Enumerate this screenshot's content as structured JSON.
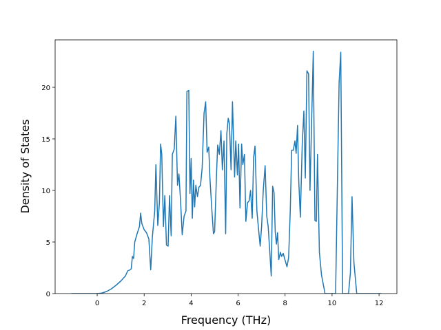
{
  "chart_data": {
    "type": "line",
    "xlabel": "Frequency (THz)",
    "ylabel": "Density of States",
    "color": "#1f77b4",
    "xlim": [
      -1.79,
      12.76
    ],
    "ylim": [
      0,
      24.6
    ],
    "xticks": [
      0,
      2,
      4,
      6,
      8,
      10,
      12
    ],
    "yticks": [
      0,
      5,
      10,
      15,
      20
    ],
    "x": [
      -1.1,
      0,
      0.2,
      0.4,
      0.6,
      0.8,
      1.0,
      1.2,
      1.3,
      1.4,
      1.45,
      1.5,
      1.55,
      1.6,
      1.7,
      1.8,
      1.85,
      1.9,
      2.0,
      2.1,
      2.2,
      2.28,
      2.35,
      2.45,
      2.5,
      2.58,
      2.65,
      2.7,
      2.75,
      2.82,
      2.88,
      2.95,
      3.02,
      3.08,
      3.15,
      3.2,
      3.28,
      3.35,
      3.42,
      3.48,
      3.55,
      3.62,
      3.7,
      3.78,
      3.82,
      3.9,
      3.95,
      4.0,
      4.05,
      4.1,
      4.15,
      4.2,
      4.27,
      4.33,
      4.4,
      4.47,
      4.55,
      4.62,
      4.68,
      4.75,
      4.8,
      4.88,
      4.95,
      5.0,
      5.08,
      5.13,
      5.2,
      5.27,
      5.33,
      5.4,
      5.47,
      5.52,
      5.58,
      5.63,
      5.7,
      5.76,
      5.85,
      5.9,
      5.97,
      6.02,
      6.08,
      6.15,
      6.2,
      6.27,
      6.33,
      6.4,
      6.47,
      6.53,
      6.6,
      6.66,
      6.72,
      6.8,
      6.88,
      6.94,
      7.0,
      7.07,
      7.15,
      7.22,
      7.28,
      7.35,
      7.41,
      7.47,
      7.53,
      7.58,
      7.63,
      7.68,
      7.73,
      7.8,
      7.85,
      7.92,
      7.98,
      8.08,
      8.15,
      8.22,
      8.28,
      8.35,
      8.42,
      8.47,
      8.53,
      8.58,
      8.65,
      8.73,
      8.8,
      8.86,
      8.93,
      9.0,
      9.06,
      9.2,
      9.27,
      9.33,
      9.38,
      9.46,
      9.55,
      9.7,
      10.15,
      10.3,
      10.37,
      10.45,
      10.7,
      10.78,
      10.85,
      10.93,
      11.05,
      12.1
    ],
    "values": [
      0,
      0,
      0.05,
      0.2,
      0.45,
      0.8,
      1.2,
      1.7,
      2.2,
      2.3,
      2.4,
      3.6,
      3.4,
      5.0,
      5.8,
      6.5,
      7.8,
      6.8,
      6.2,
      5.9,
      5.3,
      2.3,
      5.5,
      8.0,
      12.5,
      6.6,
      8.8,
      14.5,
      13.5,
      6.5,
      9.5,
      4.7,
      4.6,
      9.5,
      5.6,
      13.5,
      14.0,
      17.2,
      10.5,
      11.6,
      9.0,
      5.7,
      7.5,
      8.0,
      19.6,
      19.7,
      9.7,
      13.1,
      7.3,
      11.0,
      8.4,
      10.5,
      9.4,
      10.3,
      10.5,
      12.2,
      17.5,
      18.6,
      13.7,
      14.2,
      11.2,
      8.2,
      5.8,
      6.0,
      11.5,
      14.4,
      13.5,
      15.8,
      12.0,
      14.8,
      5.8,
      15.5,
      17.0,
      16.5,
      12.0,
      18.6,
      11.3,
      14.8,
      11.5,
      14.5,
      8.3,
      14.5,
      12.5,
      13.5,
      7.0,
      8.8,
      9.0,
      10.0,
      7.3,
      13.2,
      14.3,
      8.0,
      6.0,
      4.6,
      6.5,
      10.0,
      12.4,
      7.5,
      6.5,
      4.0,
      1.7,
      10.4,
      9.8,
      6.0,
      4.8,
      5.9,
      3.3,
      4.0,
      3.6,
      3.9,
      3.4,
      2.6,
      3.5,
      8.0,
      13.9,
      13.9,
      14.8,
      13.6,
      16.3,
      11.0,
      7.4,
      14.5,
      17.7,
      11.2,
      21.6,
      21.3,
      10.0,
      23.5,
      7.1,
      7.0,
      13.5,
      4.0,
      1.8,
      0,
      0,
      20.5,
      23.4,
      0,
      0,
      2,
      9.4,
      3,
      0,
      0
    ]
  }
}
